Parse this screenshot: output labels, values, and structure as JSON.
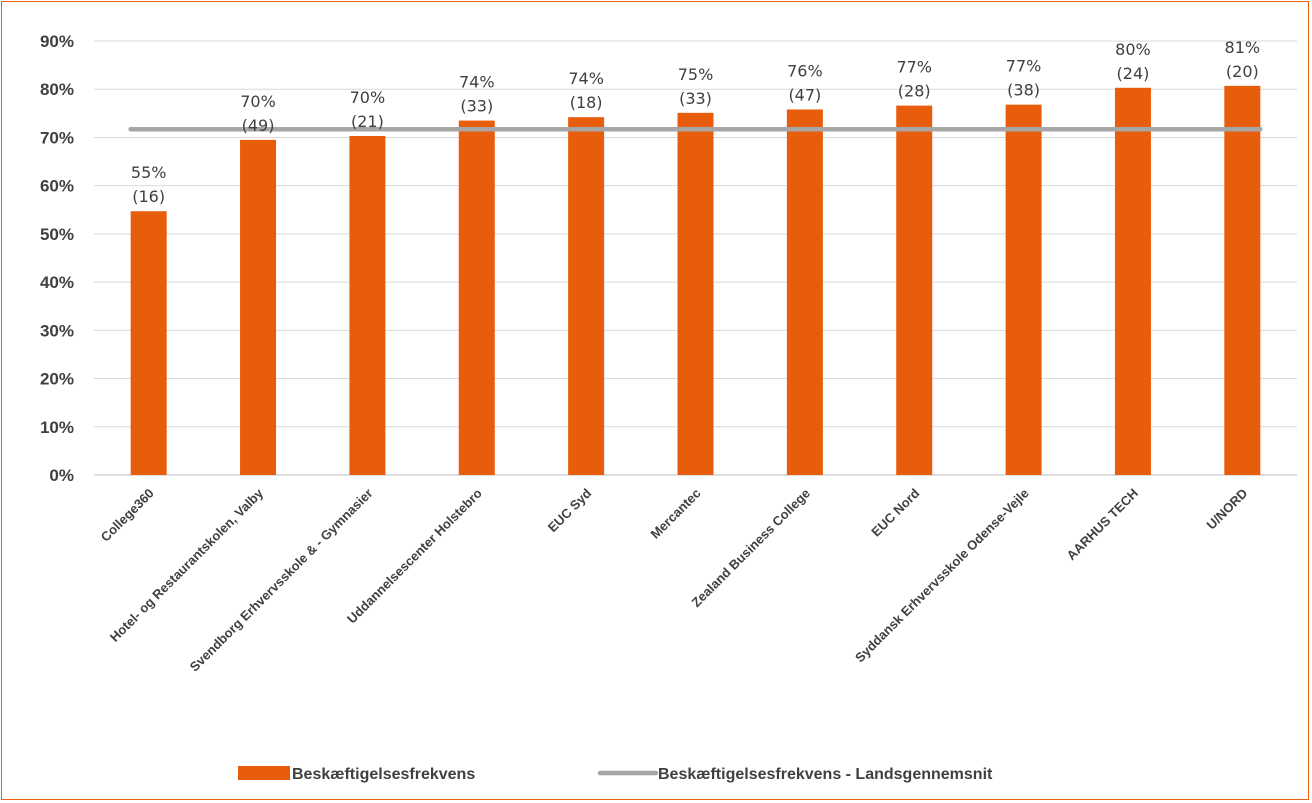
{
  "chart_data": {
    "type": "bar",
    "categories": [
      "College360",
      "Hotel- og Restaurantskolen, Valby",
      "Svendborg Erhvervsskole & - Gymnasier",
      "Uddannelsescenter Holstebro",
      "EUC Syd",
      "Mercantec",
      "Zealand Business College",
      "EUC Nord",
      "Syddansk Erhvervsskole Odense-Vejle",
      "AARHUS TECH",
      "U/NORD"
    ],
    "series": [
      {
        "name": "Beskæftigelsesfrekvens",
        "type": "bar",
        "color": "#E85D0C",
        "values": [
          0.547,
          0.695,
          0.703,
          0.735,
          0.742,
          0.751,
          0.758,
          0.766,
          0.768,
          0.803,
          0.807
        ]
      },
      {
        "name": "Beskæftigelsesfrekvens - Landsgennemsnit",
        "type": "line",
        "color": "#A6A6A6",
        "values": [
          0.717,
          0.717,
          0.717,
          0.717,
          0.717,
          0.717,
          0.717,
          0.717,
          0.717,
          0.717,
          0.717
        ]
      }
    ],
    "data_labels": [
      {
        "pct": "55%",
        "n": "(16)"
      },
      {
        "pct": "70%",
        "n": "(49)"
      },
      {
        "pct": "70%",
        "n": "(21)"
      },
      {
        "pct": "74%",
        "n": "(33)"
      },
      {
        "pct": "74%",
        "n": "(18)"
      },
      {
        "pct": "75%",
        "n": "(33)"
      },
      {
        "pct": "76%",
        "n": "(47)"
      },
      {
        "pct": "77%",
        "n": "(28)"
      },
      {
        "pct": "77%",
        "n": "(38)"
      },
      {
        "pct": "80%",
        "n": "(24)"
      },
      {
        "pct": "81%",
        "n": "(20)"
      }
    ],
    "yticks": [
      "0%",
      "10%",
      "20%",
      "30%",
      "40%",
      "50%",
      "60%",
      "70%",
      "80%",
      "90%"
    ],
    "ylim": [
      0,
      0.9
    ],
    "grid": true,
    "legend_position": "bottom",
    "frame_color": "#E8600F"
  }
}
